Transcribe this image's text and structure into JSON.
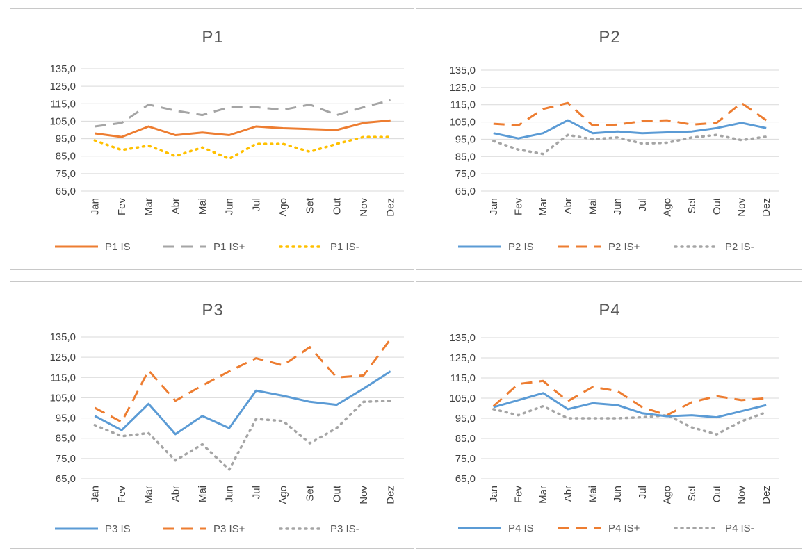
{
  "chart_data": [
    {
      "type": "line",
      "title": "P1",
      "categories": [
        "Jan",
        "Fev",
        "Mar",
        "Abr",
        "Mai",
        "Jun",
        "Jul",
        "Ago",
        "Set",
        "Out",
        "Nov",
        "Dez"
      ],
      "yticks": [
        "135,0",
        "125,0",
        "115,0",
        "105,0",
        "95,0",
        "85,0",
        "75,0",
        "65,0"
      ],
      "ylim": [
        65,
        135
      ],
      "grid": true,
      "legend_position": "bottom",
      "series": [
        {
          "name": "P1 IS",
          "style": "solid",
          "color": "#ED7D31",
          "values": [
            98,
            96,
            102,
            97,
            98.5,
            97,
            102,
            101,
            100.5,
            100,
            104,
            105.5
          ]
        },
        {
          "name": "P1 IS+",
          "style": "dashed",
          "color": "#A5A5A5",
          "values": [
            102,
            104,
            114.5,
            111,
            108.5,
            113,
            113,
            111.5,
            114.5,
            108.5,
            113,
            117
          ]
        },
        {
          "name": "P1 IS-",
          "style": "dotted",
          "color": "#FFC000",
          "values": [
            94,
            88.5,
            91,
            85,
            90,
            83.5,
            92,
            92,
            87.5,
            92,
            96,
            96
          ]
        }
      ]
    },
    {
      "type": "line",
      "title": "P2",
      "categories": [
        "Jan",
        "Fev",
        "Mar",
        "Abr",
        "Mai",
        "Jun",
        "Jul",
        "Ago",
        "Set",
        "Out",
        "Nov",
        "Dez"
      ],
      "yticks": [
        "135,0",
        "125,0",
        "115,0",
        "105,0",
        "95,0",
        "85,0",
        "75,0",
        "65,0"
      ],
      "ylim": [
        65,
        135
      ],
      "grid": true,
      "legend_position": "bottom",
      "series": [
        {
          "name": "P2 IS",
          "style": "solid",
          "color": "#5B9BD5",
          "values": [
            98.5,
            95.5,
            98.5,
            106,
            98.5,
            99.5,
            98.5,
            99,
            99.5,
            101.5,
            104.5,
            101.5
          ]
        },
        {
          "name": "P2 IS+",
          "style": "dashed",
          "color": "#ED7D31",
          "values": [
            104,
            103,
            112.5,
            116,
            103,
            103.5,
            105.5,
            106,
            103.5,
            104.5,
            116,
            106
          ]
        },
        {
          "name": "P2 IS-",
          "style": "dotted",
          "color": "#A5A5A5",
          "values": [
            94,
            89,
            86.5,
            97.5,
            95,
            96,
            92.5,
            93,
            96,
            97.5,
            94.5,
            96.5
          ]
        }
      ]
    },
    {
      "type": "line",
      "title": "P3",
      "categories": [
        "Jan",
        "Fev",
        "Mar",
        "Abr",
        "Mai",
        "Jun",
        "Jul",
        "Ago",
        "Set",
        "Out",
        "Nov",
        "Dez"
      ],
      "yticks": [
        "135,0",
        "125,0",
        "115,0",
        "105,0",
        "95,0",
        "85,0",
        "75,0",
        "65,0"
      ],
      "ylim": [
        65,
        135
      ],
      "grid": true,
      "legend_position": "bottom",
      "series": [
        {
          "name": "P3 IS",
          "style": "solid",
          "color": "#5B9BD5",
          "values": [
            96,
            89,
            102,
            87,
            96,
            90,
            108.5,
            106,
            103,
            101.5,
            109.5,
            118
          ]
        },
        {
          "name": "P3 IS+",
          "style": "dashed",
          "color": "#ED7D31",
          "values": [
            100,
            93,
            118.5,
            103.5,
            111,
            118,
            124.5,
            121,
            130,
            115,
            116,
            134
          ]
        },
        {
          "name": "P3 IS-",
          "style": "dotted",
          "color": "#A5A5A5",
          "values": [
            91.5,
            86,
            87.5,
            74,
            82,
            69.5,
            94.5,
            93.5,
            82.5,
            90,
            103,
            103.5
          ]
        }
      ]
    },
    {
      "type": "line",
      "title": "P4",
      "categories": [
        "Jan",
        "Fev",
        "Mar",
        "Abr",
        "Mai",
        "Jun",
        "Jul",
        "Ago",
        "Set",
        "Out",
        "Nov",
        "Dez"
      ],
      "yticks": [
        "135,0",
        "125,0",
        "115,0",
        "105,0",
        "95,0",
        "85,0",
        "75,0",
        "65,0"
      ],
      "ylim": [
        65,
        135
      ],
      "grid": true,
      "legend_position": "bottom",
      "series": [
        {
          "name": "P4 IS",
          "style": "solid",
          "color": "#5B9BD5",
          "values": [
            100.5,
            104,
            107.5,
            99.5,
            102.5,
            101.5,
            97.5,
            96,
            96.5,
            95.5,
            98.5,
            101.5
          ]
        },
        {
          "name": "P4 IS+",
          "style": "dashed",
          "color": "#ED7D31",
          "values": [
            101,
            112,
            113.5,
            103.5,
            110.5,
            108.5,
            100.5,
            96.5,
            103,
            106,
            104,
            105
          ]
        },
        {
          "name": "P4 IS-",
          "style": "dotted",
          "color": "#A5A5A5",
          "values": [
            99.5,
            96.5,
            101,
            95,
            95,
            95,
            95.5,
            96.5,
            90.5,
            87,
            93.5,
            98
          ]
        }
      ]
    }
  ]
}
